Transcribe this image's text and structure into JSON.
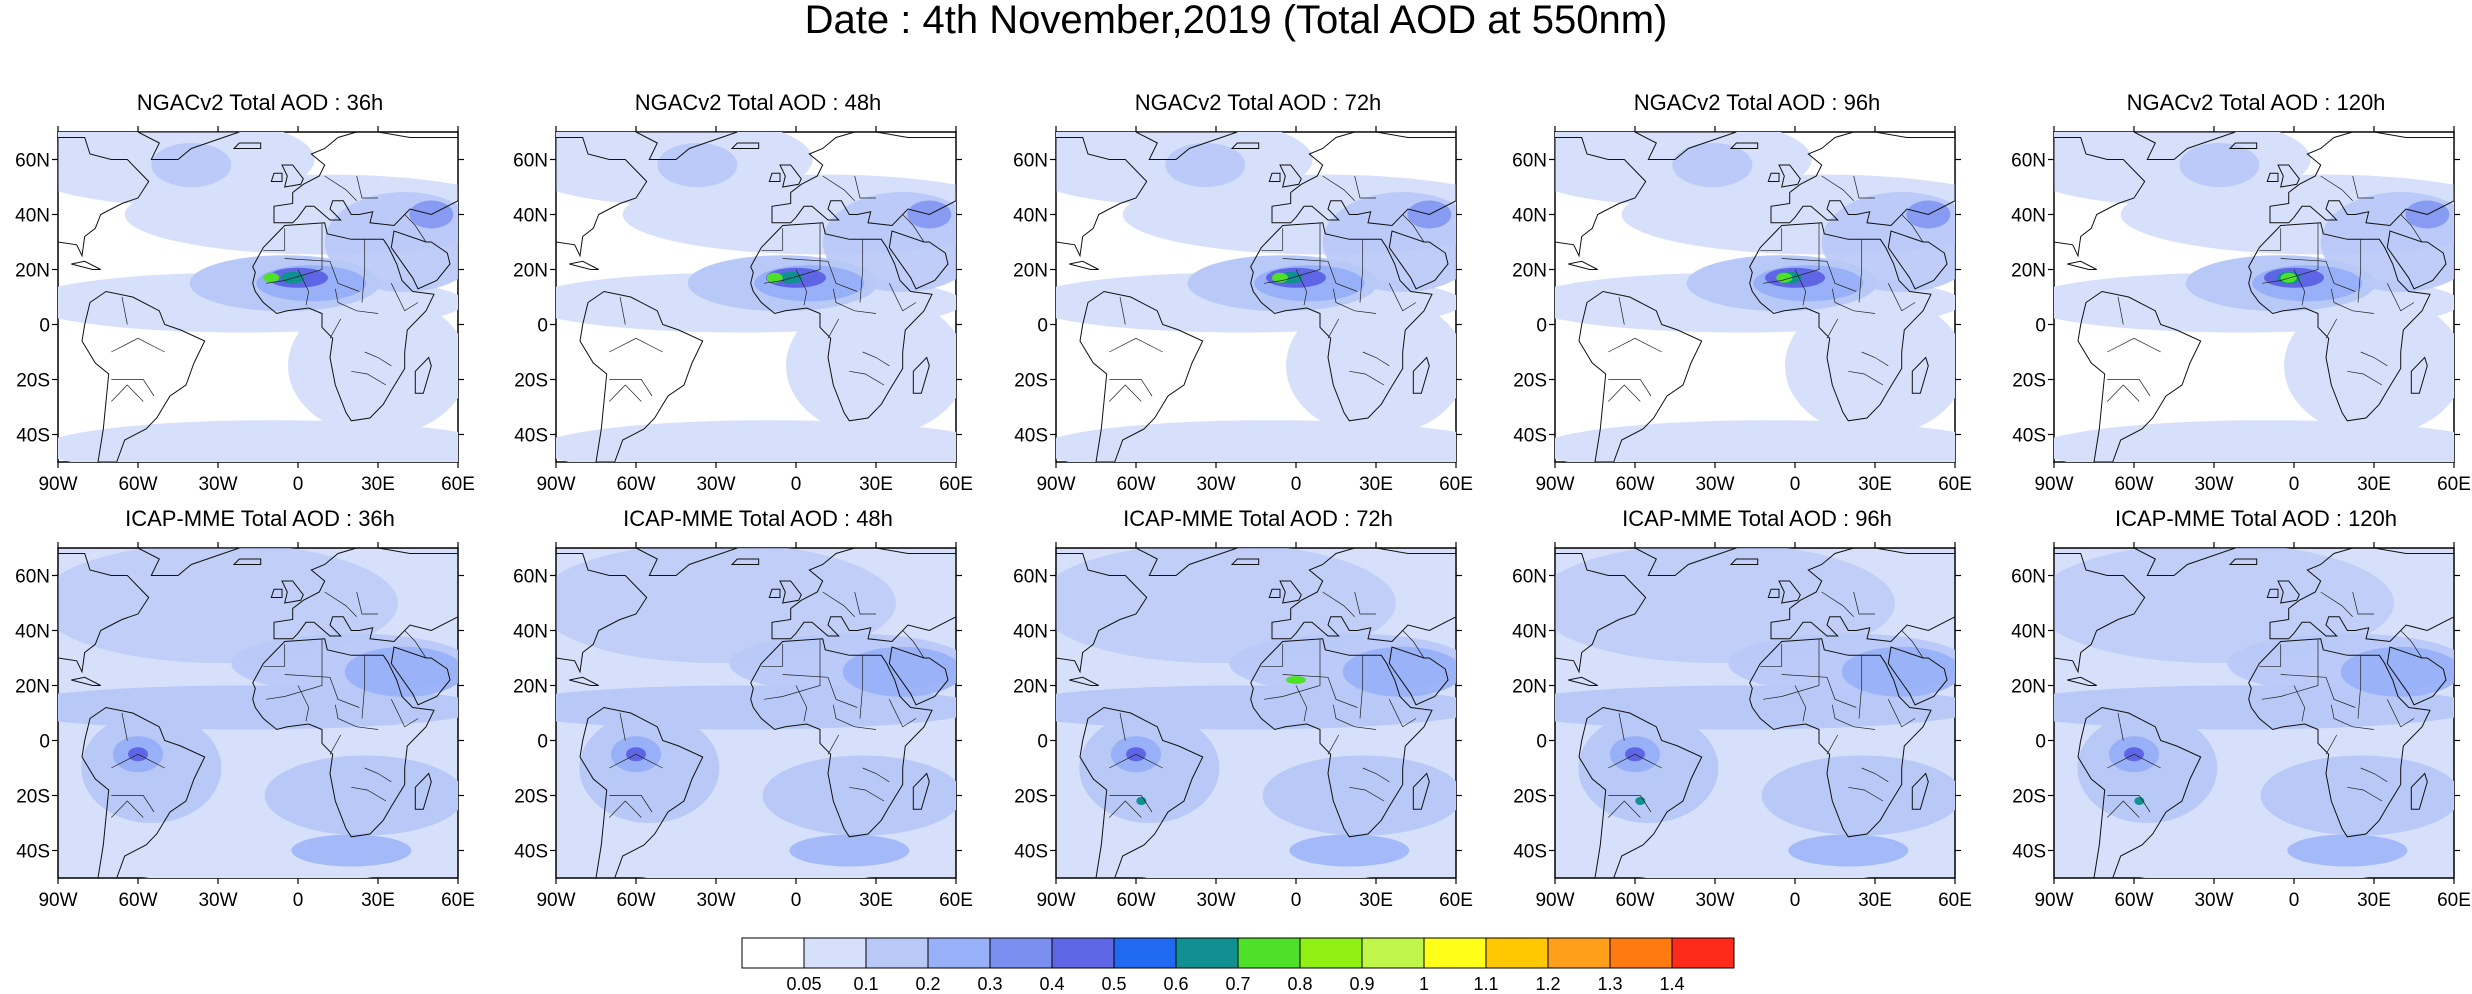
{
  "figure": {
    "title": "Date : 4th November,2019 (Total AOD at 550nm)"
  },
  "panels_top": [
    {
      "title": "NGACv2 Total AOD : 36h"
    },
    {
      "title": "NGACv2 Total AOD : 48h"
    },
    {
      "title": "NGACv2 Total AOD : 72h"
    },
    {
      "title": "NGACv2 Total AOD : 96h"
    },
    {
      "title": "NGACv2 Total AOD : 120h"
    }
  ],
  "panels_bottom": [
    {
      "title": "ICAP-MME Total AOD : 36h"
    },
    {
      "title": "ICAP-MME Total AOD : 48h"
    },
    {
      "title": "ICAP-MME Total AOD : 72h"
    },
    {
      "title": "ICAP-MME Total AOD : 96h"
    },
    {
      "title": "ICAP-MME Total AOD : 120h"
    }
  ],
  "axes": {
    "lat_labels": [
      "60N",
      "40N",
      "20N",
      "0",
      "20S",
      "40S"
    ],
    "lon_labels": [
      "90W",
      "60W",
      "30W",
      "0",
      "30E",
      "60E"
    ]
  },
  "colorbar": {
    "labels": [
      "0.05",
      "0.1",
      "0.2",
      "0.3",
      "0.4",
      "0.5",
      "0.6",
      "0.7",
      "0.8",
      "0.9",
      "1",
      "1.1",
      "1.2",
      "1.3",
      "1.4"
    ],
    "colors": [
      "#ffffff",
      "#d6e0fb",
      "#b8c8f7",
      "#97b0f7",
      "#7b8ff0",
      "#5f66e6",
      "#1f6af0",
      "#109090",
      "#4fe02a",
      "#8ff012",
      "#c0f54a",
      "#ffff1a",
      "#ffc800",
      "#ff9f1a",
      "#ff7a10",
      "#ff2a1a"
    ]
  }
}
